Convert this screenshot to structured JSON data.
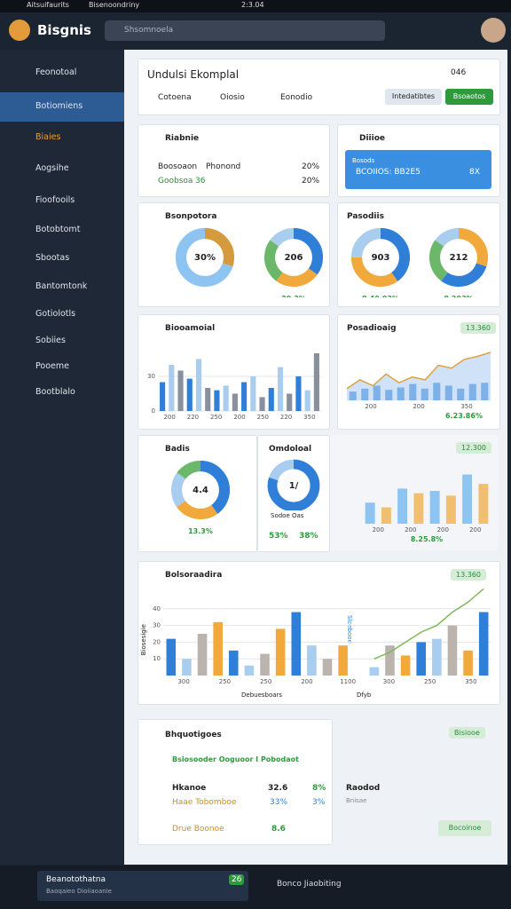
{
  "status_bar": {
    "app": "Aitsuifaurits",
    "tab": "Bisenoondriny",
    "time": "2:3.04"
  },
  "header": {
    "logo": "Bisgnis",
    "search": "Shsomnoela"
  },
  "sidebar": {
    "items": [
      "Feonotoal",
      "Botiomiens",
      "Biaies",
      "Aogsihe",
      "Fioofooils",
      "Botobtomt",
      "Sbootas",
      "Bantomtonk",
      "Gotiolotls",
      "Sobiies",
      "Pooeme",
      "Bootblalo"
    ]
  },
  "page": {
    "title": "Undulsi Ekomplal",
    "counter": "046",
    "tabs": [
      "Cotoena",
      "Oiosio",
      "Eonodio"
    ],
    "buttons": [
      "Intedatibtes",
      "Bsoaotos"
    ]
  },
  "cards": [
    {
      "title": "Riabnie",
      "rows": [
        [
          "Boosoaon",
          "Phonond",
          "20%"
        ],
        [
          "Goobsoa",
          "36",
          "20%"
        ]
      ]
    },
    {
      "title": "Diiioe",
      "banner_label": "Bosods",
      "banner": "BCOIIOS: BB2E5",
      "banner_value": "8X"
    },
    {
      "title": "Bsonpotora",
      "charts": [
        {
          "type": "donut",
          "center": "30%",
          "values": [
            30,
            70
          ],
          "colors": [
            "#d49a3c",
            "#8ec4f2"
          ]
        },
        {
          "type": "donut",
          "center": "206",
          "values": [
            35,
            25,
            25,
            15
          ],
          "colors": [
            "#2f7fd8",
            "#f0a93a",
            "#6cb86a",
            "#a8cdee"
          ],
          "caption": "20.3%"
        }
      ]
    },
    {
      "title": "Pasodiis",
      "charts": [
        {
          "type": "donut",
          "center": "903",
          "values": [
            40,
            35,
            25
          ],
          "colors": [
            "#2f7fd8",
            "#f0a93a",
            "#a8cdee"
          ],
          "caption": "8.40.03%"
        },
        {
          "type": "donut",
          "center": "212",
          "values": [
            30,
            30,
            25,
            15
          ],
          "colors": [
            "#f0a93a",
            "#2f7fd8",
            "#6cb86a",
            "#a8cdee"
          ],
          "caption": "8.203%"
        }
      ]
    },
    {
      "title": "Biooamoial",
      "charts": [
        {
          "type": "bar",
          "ylim": [
            0,
            60
          ],
          "yticks": [
            0,
            30
          ],
          "values": [
            25,
            40,
            35,
            28,
            45,
            20,
            18,
            22,
            15,
            25,
            30,
            12,
            20,
            38,
            15,
            30,
            18,
            50
          ],
          "colors": [
            "#2f7fd8",
            "#a8cdee",
            "#8a8fa0"
          ],
          "xlabels": [
            "200",
            "220",
            "250",
            "200",
            "250",
            "220",
            "350"
          ]
        }
      ]
    },
    {
      "title": "Posadioaig",
      "badge": "13.360",
      "charts": [
        {
          "type": "area",
          "ylim": [
            0,
            100
          ],
          "values": [
            20,
            35,
            25,
            45,
            30,
            40,
            35,
            60,
            55,
            70,
            75,
            82
          ],
          "bars": [
            15,
            20,
            25,
            18,
            22,
            28,
            20,
            30,
            25,
            20,
            28,
            30
          ],
          "color": "#7db1e8",
          "line_color": "#e0a040",
          "xlabels": [
            "200",
            "200",
            "350"
          ],
          "caption": "6.23.86%"
        }
      ]
    },
    {
      "title": "Badis",
      "charts": [
        {
          "type": "donut",
          "center": "4.4",
          "values": [
            40,
            25,
            20,
            15
          ],
          "colors": [
            "#2f7fd8",
            "#f0a93a",
            "#a8cdee",
            "#6cb86a"
          ],
          "caption": "13.3%"
        }
      ]
    },
    {
      "title": "Omdoloal",
      "label": "Sodoe Oas",
      "captions": [
        "53%",
        "38%"
      ],
      "charts": [
        {
          "type": "donut",
          "center": "1/",
          "values": [
            80,
            20
          ],
          "colors": [
            "#2f7fd8",
            "#a8cdee"
          ]
        }
      ]
    },
    {
      "badge": "12.300",
      "charts": [
        {
          "type": "bar",
          "ylim": [
            0,
            50
          ],
          "yticks": [],
          "values": [
            18,
            14,
            30,
            26,
            28,
            24,
            42,
            34
          ],
          "colors": [
            "#8ec4f2",
            "#f0c070"
          ],
          "xlabels": [
            "200",
            "200",
            "200",
            "200"
          ],
          "caption": "8.25.8%"
        }
      ]
    },
    {
      "title": "Bolsoraadira",
      "badge": "13.360",
      "marker": "Slcebooe",
      "axis_title": "Biosesigie",
      "x_title": "Debuesboars",
      "x_title2": "Dfyb",
      "charts": [
        {
          "type": "bar",
          "ylim": [
            0,
            50
          ],
          "yticks": [
            10,
            20,
            30,
            40
          ],
          "values": [
            22,
            10,
            25,
            32,
            15,
            6,
            13,
            28,
            38,
            18,
            10,
            18,
            0,
            5,
            18,
            12,
            20,
            22,
            30,
            15,
            38
          ],
          "colors": [
            "#2f7fd8",
            "#a8cdee",
            "#bbb4ae",
            "#f0a93a"
          ],
          "line": [
            null,
            null,
            null,
            null,
            null,
            null,
            null,
            null,
            null,
            null,
            null,
            null,
            null,
            10,
            14,
            20,
            26,
            30,
            38,
            44,
            52
          ],
          "line_color": "#7fb85a",
          "xlabels": [
            "300",
            "250",
            "250",
            "200",
            "1100",
            "300",
            "250",
            "350"
          ]
        }
      ]
    },
    {
      "title": "Bhquotigoes",
      "subtitle": "Bsiosooder Ooguoor I Pobodaot",
      "rows": [
        [
          "Hkanoe",
          "32.6",
          "8%"
        ],
        [
          "Haae Tobomboe",
          "33%",
          "3%"
        ],
        [
          "Drue Boonoe",
          "8.6"
        ]
      ],
      "side_title": "Raodod",
      "side_text": "Bnisae",
      "badge": "Bisiooe",
      "button": "Bocoinoe"
    }
  ],
  "footer": {
    "title": "Beanotothatna",
    "subtitle": "Baoqaieo Dioiiaoanie",
    "badge": "26",
    "right": "Bonco Jiaobiting"
  }
}
